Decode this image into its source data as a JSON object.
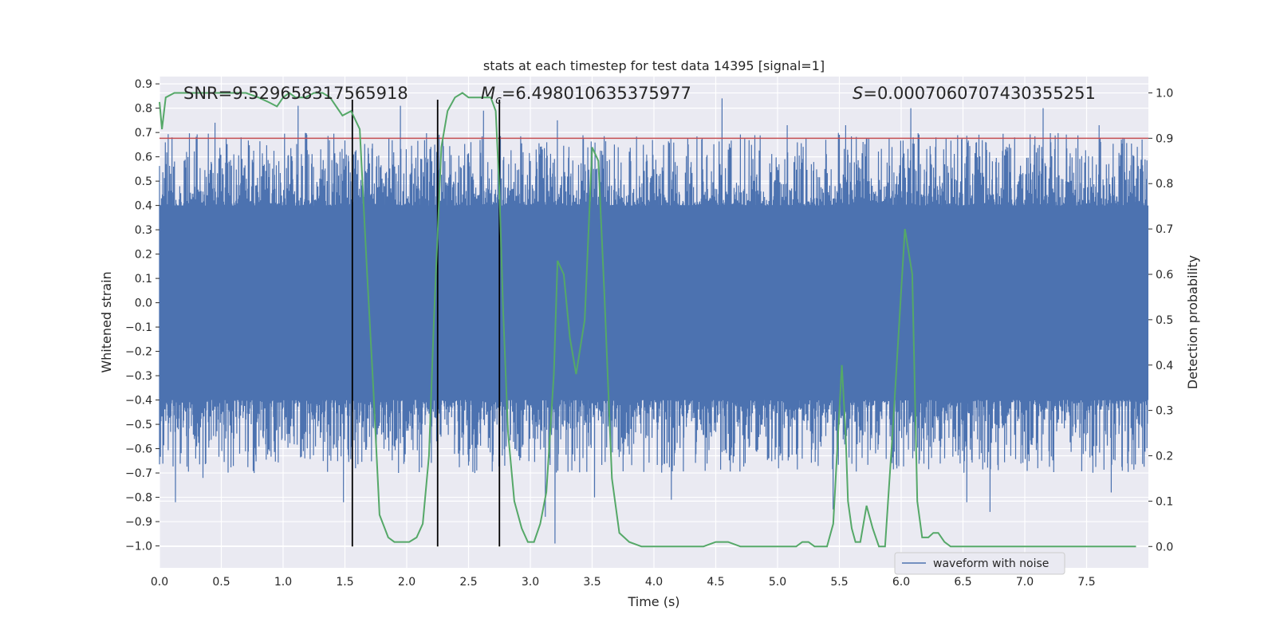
{
  "chart_data": {
    "type": "line",
    "title": "stats at each timestep for test data 14395 [signal=1]",
    "xlabel": "Time (s)",
    "ylabel_left": "Whitened strain",
    "ylabel_right": "Detection probability",
    "xlim": [
      0.0,
      8.0
    ],
    "ylim_left": [
      -1.09,
      0.93
    ],
    "ylim_right": [
      -0.047,
      1.036
    ],
    "x_ticks": [
      0.0,
      0.5,
      1.0,
      1.5,
      2.0,
      2.5,
      3.0,
      3.5,
      4.0,
      4.5,
      5.0,
      5.5,
      6.0,
      6.5,
      7.0,
      7.5
    ],
    "x_tick_labels": [
      "0.0",
      "0.5",
      "1.0",
      "1.5",
      "2.0",
      "2.5",
      "3.0",
      "3.5",
      "4.0",
      "4.5",
      "5.0",
      "5.5",
      "6.0",
      "6.5",
      "7.0",
      "7.5"
    ],
    "y_left_ticks": [
      0.9,
      0.8,
      0.7,
      0.6,
      0.5,
      0.4,
      0.3,
      0.2,
      0.1,
      0.0,
      -0.1,
      -0.2,
      -0.3,
      -0.4,
      -0.5,
      -0.6,
      -0.7,
      -0.8,
      -0.9,
      -1.0
    ],
    "y_left_tick_labels": [
      "0.9",
      "0.8",
      "0.7",
      "0.6",
      "0.5",
      "0.4",
      "0.3",
      "0.2",
      "0.1",
      "0.0",
      "−0.1",
      "−0.2",
      "−0.3",
      "−0.4",
      "−0.5",
      "−0.6",
      "−0.7",
      "−0.8",
      "−0.9",
      "−1.0"
    ],
    "y_right_ticks": [
      1.0,
      0.9,
      0.8,
      0.7,
      0.6,
      0.5,
      0.4,
      0.3,
      0.2,
      0.1,
      0.0
    ],
    "y_right_tick_labels": [
      "1.0",
      "0.9",
      "0.8",
      "0.7",
      "0.6",
      "0.5",
      "0.4",
      "0.3",
      "0.2",
      "0.1",
      "0.0"
    ],
    "annotations": {
      "snr": "SNR=9.529658317565918",
      "mc_symbol": "M",
      "mc_subscript": "c",
      "mc_value": "=6.498010635375977",
      "s_symbol": "S",
      "s_value": "=0.0007060707430355251"
    },
    "legend": {
      "position": "lower-right",
      "entries": [
        "waveform with noise"
      ]
    },
    "threshold": {
      "value": 0.9,
      "axis": "right",
      "color": "#c44e52"
    },
    "vertical_lines": [
      1.56,
      2.25,
      2.75
    ],
    "waveform": {
      "name": "waveform with noise",
      "color": "#4c72b0",
      "seed": 14395,
      "n_samples": 2048,
      "envelope": [
        0.4,
        0.7
      ],
      "max_spikes": [
        {
          "t": 0.05,
          "v": 0.57
        },
        {
          "t": 0.22,
          "v": 0.62
        },
        {
          "t": 0.45,
          "v": 0.74
        },
        {
          "t": 1.12,
          "v": 0.81
        },
        {
          "t": 1.95,
          "v": 0.81
        },
        {
          "t": 2.62,
          "v": 0.79
        },
        {
          "t": 3.22,
          "v": 0.75
        },
        {
          "t": 4.55,
          "v": 0.84
        },
        {
          "t": 5.08,
          "v": 0.73
        },
        {
          "t": 5.55,
          "v": 0.73
        },
        {
          "t": 6.08,
          "v": 0.8
        },
        {
          "t": 7.15,
          "v": 0.8
        },
        {
          "t": 7.6,
          "v": 0.73
        },
        {
          "t": 7.78,
          "v": 0.67
        }
      ],
      "min_spikes": [
        {
          "t": 0.13,
          "v": -0.82
        },
        {
          "t": 0.35,
          "v": -0.72
        },
        {
          "t": 1.49,
          "v": -0.82
        },
        {
          "t": 2.55,
          "v": -0.7
        },
        {
          "t": 3.12,
          "v": -0.88
        },
        {
          "t": 3.2,
          "v": -0.99
        },
        {
          "t": 3.52,
          "v": -0.8
        },
        {
          "t": 4.14,
          "v": -0.81
        },
        {
          "t": 5.45,
          "v": -0.85
        },
        {
          "t": 6.53,
          "v": -0.82
        },
        {
          "t": 6.72,
          "v": -0.86
        },
        {
          "t": 7.7,
          "v": -0.78
        }
      ]
    },
    "probability": {
      "name": "detection probability",
      "color": "#55a868",
      "x": [
        0.0,
        0.02,
        0.05,
        0.12,
        0.2,
        0.3,
        0.5,
        0.7,
        0.8,
        0.88,
        0.95,
        1.0,
        1.05,
        1.1,
        1.18,
        1.25,
        1.32,
        1.38,
        1.43,
        1.48,
        1.55,
        1.62,
        1.68,
        1.73,
        1.78,
        1.85,
        1.9,
        1.96,
        2.02,
        2.08,
        2.13,
        2.18,
        2.22,
        2.28,
        2.33,
        2.39,
        2.45,
        2.5,
        2.56,
        2.62,
        2.68,
        2.72,
        2.75,
        2.78,
        2.82,
        2.87,
        2.93,
        2.98,
        3.03,
        3.08,
        3.13,
        3.19,
        3.22,
        3.27,
        3.32,
        3.37,
        3.44,
        3.5,
        3.55,
        3.6,
        3.66,
        3.72,
        3.8,
        3.9,
        4.1,
        4.4,
        4.5,
        4.6,
        4.7,
        4.8,
        4.9,
        5.0,
        5.05,
        5.1,
        5.15,
        5.2,
        5.25,
        5.3,
        5.35,
        5.4,
        5.45,
        5.52,
        5.55,
        5.57,
        5.6,
        5.63,
        5.67,
        5.72,
        5.77,
        5.82,
        5.87,
        5.93,
        6.03,
        6.09,
        6.13,
        6.17,
        6.22,
        6.26,
        6.3,
        6.35,
        6.4,
        6.5,
        6.7,
        7.0,
        7.3,
        7.6,
        7.9
      ],
      "y": [
        0.98,
        0.92,
        0.99,
        1.0,
        1.0,
        1.0,
        1.0,
        1.0,
        0.99,
        0.98,
        0.97,
        0.99,
        1.0,
        0.99,
        0.99,
        1.0,
        1.0,
        0.99,
        0.97,
        0.95,
        0.96,
        0.92,
        0.6,
        0.35,
        0.07,
        0.02,
        0.01,
        0.01,
        0.01,
        0.02,
        0.05,
        0.2,
        0.5,
        0.88,
        0.96,
        0.99,
        1.0,
        0.99,
        0.99,
        0.99,
        0.99,
        0.96,
        0.78,
        0.52,
        0.25,
        0.1,
        0.04,
        0.01,
        0.01,
        0.05,
        0.12,
        0.38,
        0.63,
        0.6,
        0.46,
        0.38,
        0.5,
        0.88,
        0.85,
        0.55,
        0.15,
        0.03,
        0.01,
        0.0,
        0.0,
        0.0,
        0.01,
        0.01,
        0.0,
        0.0,
        0.0,
        0.0,
        0.0,
        0.0,
        0.0,
        0.01,
        0.01,
        0.0,
        0.0,
        0.0,
        0.05,
        0.4,
        0.25,
        0.1,
        0.04,
        0.01,
        0.01,
        0.09,
        0.04,
        0.0,
        0.0,
        0.25,
        0.7,
        0.6,
        0.1,
        0.02,
        0.02,
        0.03,
        0.03,
        0.01,
        0.0,
        0.0,
        0.0,
        0.0,
        0.0,
        0.0,
        0.0
      ]
    }
  }
}
